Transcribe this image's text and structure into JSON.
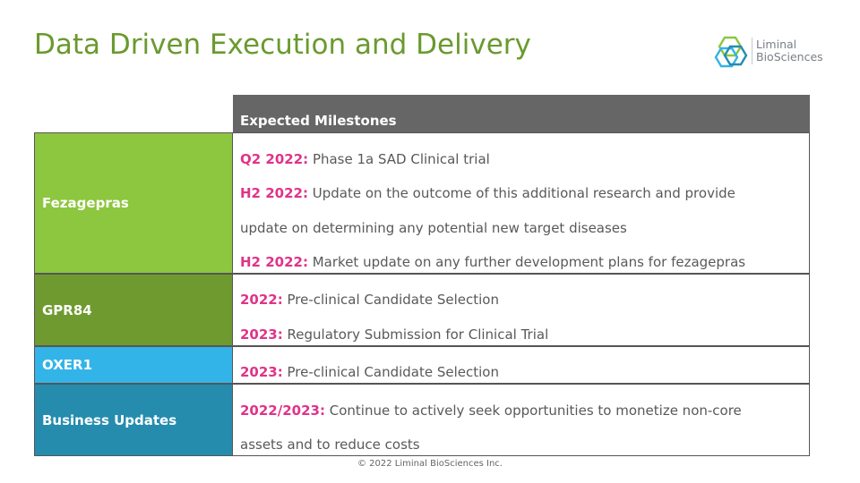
{
  "slide": {
    "title": "Data Driven Execution and Delivery",
    "footer": "© 2022 Liminal BioSciences Inc."
  },
  "logo": {
    "line1": "Liminal",
    "line2": "BioSciences"
  },
  "table": {
    "header": "Expected Milestones",
    "rows": [
      {
        "label": "Fezagepras",
        "color": "#8dc63f",
        "lines": [
          {
            "tag": "Q2 2022:",
            "text": " Phase 1a SAD Clinical trial"
          },
          {
            "tag": "H2 2022:",
            "text": " Update on the outcome of this additional research and provide"
          },
          {
            "tag": "",
            "text": "update on determining any potential new target diseases"
          },
          {
            "tag": "H2 2022:",
            "text": " Market update on any further development plans for fezagepras"
          }
        ]
      },
      {
        "label": "GPR84",
        "color": "#6f9a30",
        "lines": [
          {
            "tag": "2022:",
            "text": " Pre-clinical Candidate Selection"
          },
          {
            "tag": "2023:",
            "text": " Regulatory Submission for Clinical Trial"
          }
        ]
      },
      {
        "label": "OXER1",
        "color": "#33b4e8",
        "lines": [
          {
            "tag": "2023:",
            "text": " Pre-clinical Candidate Selection"
          }
        ]
      },
      {
        "label": "Business Updates",
        "color": "#258cae",
        "lines": [
          {
            "tag": "2022/2023:",
            "text": " Continue to actively seek opportunities to monetize non-core"
          },
          {
            "tag": "",
            "text": "assets and to reduce costs"
          }
        ]
      }
    ]
  },
  "colors": {
    "title": "#6a9a2e",
    "header_bg": "#666666",
    "tag": "#e0338a"
  }
}
